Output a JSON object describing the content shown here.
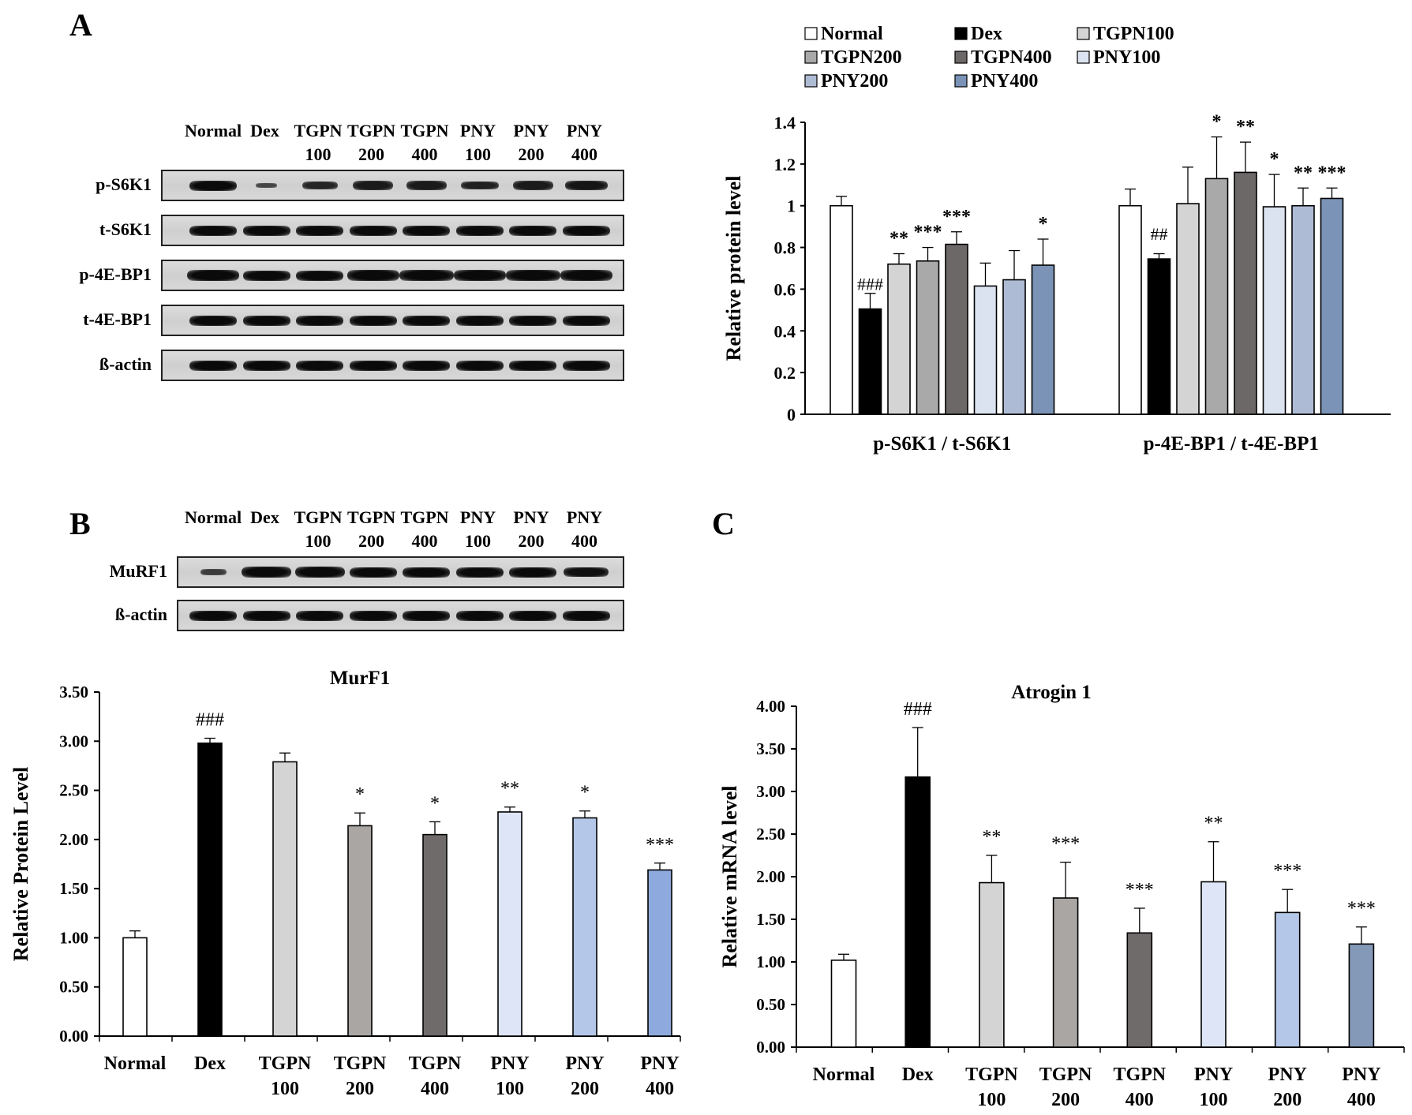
{
  "panels": {
    "a": "A",
    "b": "B",
    "c": "C"
  },
  "lanes": [
    {
      "l1": "Normal",
      "l2": ""
    },
    {
      "l1": "Dex",
      "l2": ""
    },
    {
      "l1": "TGPN",
      "l2": "100"
    },
    {
      "l1": "TGPN",
      "l2": "200"
    },
    {
      "l1": "TGPN",
      "l2": "400"
    },
    {
      "l1": "PNY",
      "l2": "100"
    },
    {
      "l1": "PNY",
      "l2": "200"
    },
    {
      "l1": "PNY",
      "l2": "400"
    }
  ],
  "blotA": {
    "rows": [
      {
        "label": "p-S6K1",
        "intensity": [
          1.0,
          0.45,
          0.75,
          0.85,
          0.85,
          0.8,
          0.85,
          0.9
        ]
      },
      {
        "label": "t-S6K1",
        "intensity": [
          1,
          1,
          1,
          1,
          1,
          1,
          1,
          1
        ]
      },
      {
        "label": "p-4E-BP1",
        "intensity": [
          1.1,
          1.0,
          1.0,
          1.1,
          1.15,
          1.1,
          1.15,
          1.1
        ]
      },
      {
        "label": "t-4E-BP1",
        "intensity": [
          1,
          1,
          1,
          1,
          1,
          1,
          1,
          1
        ]
      },
      {
        "label": "ß-actin",
        "intensity": [
          1,
          1,
          1,
          1,
          1,
          1,
          1,
          1
        ]
      }
    ]
  },
  "blotB": {
    "rows": [
      {
        "label": "MuRF1",
        "intensity": [
          0.55,
          1.05,
          1.05,
          1.0,
          1.0,
          1.0,
          1.0,
          0.95
        ]
      },
      {
        "label": "ß-actin",
        "intensity": [
          1,
          1,
          1,
          1,
          1,
          1,
          1,
          1
        ]
      }
    ]
  },
  "chart_data": [
    {
      "type": "bar",
      "panel": "A",
      "title": "",
      "ylabel": "Relative protein level",
      "xlabel": "",
      "ylim": [
        0,
        1.4
      ],
      "yticks": [
        "0",
        "0.2",
        "0.4",
        "0.6",
        "0.8",
        "1",
        "1.2",
        "1.4"
      ],
      "categories": [
        "p-S6K1 / t-S6K1",
        "p-4E-BP1 / t-4E-BP1"
      ],
      "legend_position": "top",
      "series": [
        {
          "name": "Normal",
          "color": "#ffffff",
          "values": [
            1.0,
            1.0
          ],
          "errors": [
            0.045,
            0.08
          ],
          "labels": [
            "",
            ""
          ]
        },
        {
          "name": "Dex",
          "color": "#000000",
          "values": [
            0.505,
            0.745
          ],
          "errors": [
            0.075,
            0.025
          ],
          "labels": [
            "###",
            "##"
          ]
        },
        {
          "name": "TGPN100",
          "color": "#d4d4d4",
          "values": [
            0.72,
            1.01
          ],
          "errors": [
            0.05,
            0.175
          ],
          "labels": [
            "**",
            ""
          ]
        },
        {
          "name": "TGPN200",
          "color": "#a9a9a9",
          "values": [
            0.735,
            1.13
          ],
          "errors": [
            0.065,
            0.2
          ],
          "labels": [
            "***",
            "*"
          ]
        },
        {
          "name": "TGPN400",
          "color": "#6d6868",
          "values": [
            0.815,
            1.16
          ],
          "errors": [
            0.06,
            0.145
          ],
          "labels": [
            "***",
            "**"
          ]
        },
        {
          "name": "PNY100",
          "color": "#dbe2f0",
          "values": [
            0.615,
            0.995
          ],
          "errors": [
            0.11,
            0.155
          ],
          "labels": [
            "",
            "*"
          ]
        },
        {
          "name": "PNY200",
          "color": "#aebbd4",
          "values": [
            0.645,
            1.0
          ],
          "errors": [
            0.14,
            0.085
          ],
          "labels": [
            "",
            "**"
          ]
        },
        {
          "name": "PNY400",
          "color": "#7a93b6",
          "values": [
            0.715,
            1.035
          ],
          "errors": [
            0.125,
            0.05
          ],
          "labels": [
            "*",
            "***"
          ]
        }
      ]
    },
    {
      "type": "bar",
      "panel": "B",
      "title": "MurF1",
      "ylabel": "Relative Protein Level",
      "xlabel": "",
      "ylim": [
        0,
        3.5
      ],
      "yticks": [
        "0.00",
        "0.50",
        "1.00",
        "1.50",
        "2.00",
        "2.50",
        "3.00",
        "3.50"
      ],
      "categories": [
        "Normal",
        "Dex",
        "TGPN 100",
        "TGPN 200",
        "TGPN 400",
        "PNY 100",
        "PNY 200",
        "PNY 400"
      ],
      "values": [
        1.0,
        2.98,
        2.79,
        2.14,
        2.05,
        2.28,
        2.22,
        1.69
      ],
      "errors": [
        0.07,
        0.05,
        0.09,
        0.13,
        0.13,
        0.05,
        0.07,
        0.07
      ],
      "labels": [
        "",
        "###",
        "",
        "*",
        "*",
        "**",
        "*",
        "***"
      ],
      "colors": [
        "#ffffff",
        "#000000",
        "#d4d4d4",
        "#aaa6a4",
        "#706b6b",
        "#dde5f6",
        "#b5c7e8",
        "#8ea9dd"
      ]
    },
    {
      "type": "bar",
      "panel": "C",
      "title": "Atrogin 1",
      "ylabel": "Relative mRNA level",
      "xlabel": "",
      "ylim": [
        0,
        4.0
      ],
      "yticks": [
        "0.00",
        "0.50",
        "1.00",
        "1.50",
        "2.00",
        "2.50",
        "3.00",
        "3.50",
        "4.00"
      ],
      "categories": [
        "Normal",
        "Dex",
        "TGPN 100",
        "TGPN 200",
        "TGPN 400",
        "PNY 100",
        "PNY 200",
        "PNY 400"
      ],
      "values": [
        1.02,
        3.17,
        1.93,
        1.75,
        1.34,
        1.94,
        1.58,
        1.21
      ],
      "errors": [
        0.07,
        0.58,
        0.32,
        0.42,
        0.29,
        0.47,
        0.27,
        0.2
      ],
      "labels": [
        "",
        "###",
        "**",
        "***",
        "***",
        "**",
        "***",
        "***"
      ],
      "colors": [
        "#ffffff",
        "#000000",
        "#d4d4d4",
        "#aaa6a4",
        "#706b6b",
        "#dde5f6",
        "#b5c7e8",
        "#8498b8"
      ]
    }
  ]
}
